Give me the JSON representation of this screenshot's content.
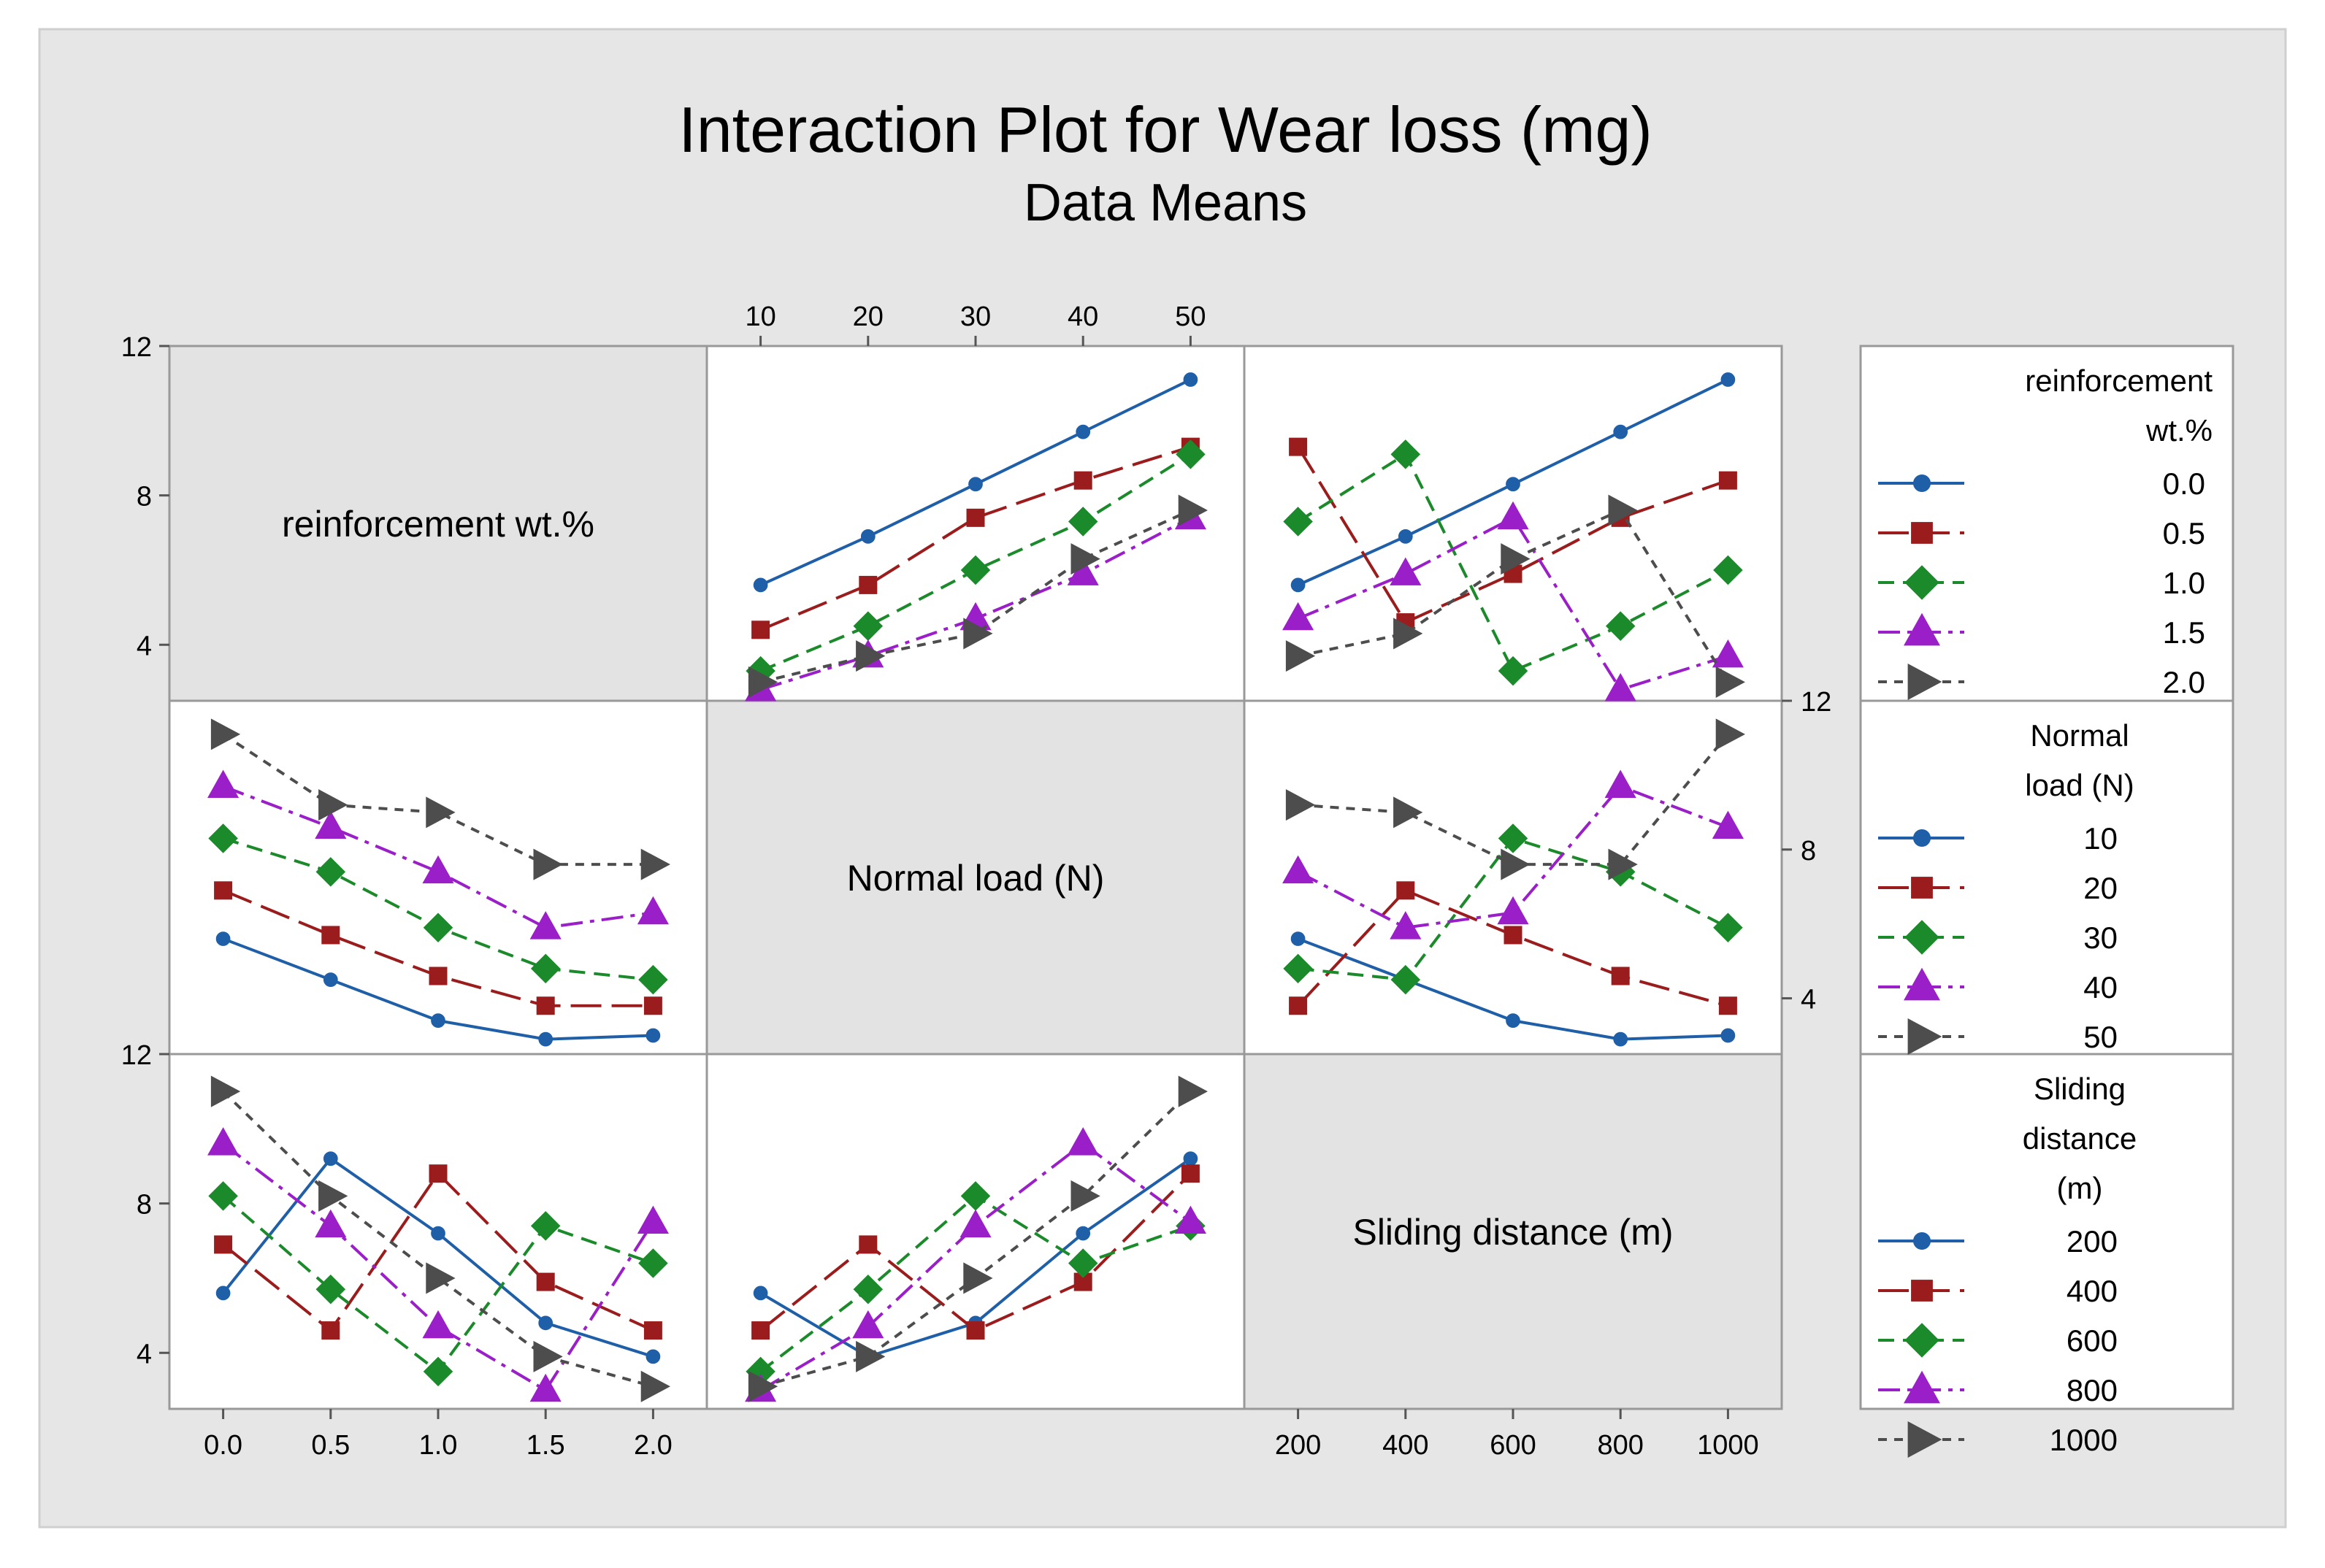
{
  "title": "Interaction Plot for Wear loss (mg)",
  "subtitle": "Data Means",
  "colors": {
    "background": "#e6e6e6",
    "panel": "#ffffff",
    "label_panel": "#e3e3e3",
    "frame": "#999999",
    "series": [
      "#1f5fa8",
      "#9b1c1c",
      "#1b8a2a",
      "#9a1fc8",
      "#4d4d4d"
    ]
  },
  "marker_names": [
    "circle",
    "square",
    "diamond",
    "triangle-up",
    "triangle-right"
  ],
  "dash_patterns": [
    "solid",
    "long-dash",
    "dash",
    "dash-dot",
    "short-dash"
  ],
  "chart_data": {
    "type": "line",
    "factors": [
      {
        "name": "reinforcement wt.%",
        "levels": [
          "0.0",
          "0.5",
          "1.0",
          "1.5",
          "2.0"
        ],
        "legend_title": [
          "reinforcement",
          "wt.%"
        ]
      },
      {
        "name": "Normal load (N)",
        "levels": [
          "10",
          "20",
          "30",
          "40",
          "50"
        ],
        "legend_title": [
          "Normal",
          "load (N)"
        ]
      },
      {
        "name": "Sliding distance (m)",
        "levels": [
          "200",
          "400",
          "600",
          "800",
          "1000"
        ],
        "legend_title": [
          "Sliding",
          "distance",
          "(m)"
        ]
      }
    ],
    "ylim": [
      2.5,
      12
    ],
    "yticks": [
      4,
      8,
      12
    ],
    "ytick_labels": [
      "4",
      "8",
      "12"
    ],
    "panels": [
      {
        "row": 0,
        "col": 1,
        "x_factor": "Normal load (N)",
        "trace_factor": "reinforcement wt.%",
        "series": [
          {
            "name": "0.0",
            "values": [
              5.6,
              6.9,
              8.3,
              9.7,
              11.1
            ]
          },
          {
            "name": "0.5",
            "values": [
              4.4,
              5.6,
              7.4,
              8.4,
              9.3
            ]
          },
          {
            "name": "1.0",
            "values": [
              3.3,
              4.5,
              6.0,
              7.3,
              9.1
            ]
          },
          {
            "name": "1.5",
            "values": [
              2.8,
              3.7,
              4.7,
              5.9,
              7.4
            ]
          },
          {
            "name": "2.0",
            "values": [
              3.0,
              3.7,
              4.3,
              6.3,
              7.6
            ]
          }
        ]
      },
      {
        "row": 0,
        "col": 2,
        "x_factor": "Sliding distance (m)",
        "trace_factor": "reinforcement wt.%",
        "series": [
          {
            "name": "0.0",
            "values": [
              5.6,
              6.9,
              8.3,
              9.7,
              11.1
            ]
          },
          {
            "name": "0.5",
            "values": [
              9.3,
              4.6,
              5.9,
              7.4,
              8.4
            ]
          },
          {
            "name": "1.0",
            "values": [
              7.3,
              9.1,
              3.3,
              4.5,
              6.0
            ]
          },
          {
            "name": "1.5",
            "values": [
              4.7,
              5.9,
              7.4,
              2.8,
              3.7
            ]
          },
          {
            "name": "2.0",
            "values": [
              3.7,
              4.3,
              6.3,
              7.6,
              3.0
            ]
          }
        ]
      },
      {
        "row": 1,
        "col": 0,
        "x_factor": "reinforcement wt.%",
        "trace_factor": "Normal load (N)",
        "series": [
          {
            "name": "10",
            "values": [
              5.6,
              4.5,
              3.4,
              2.9,
              3.0
            ]
          },
          {
            "name": "20",
            "values": [
              6.9,
              5.7,
              4.6,
              3.8,
              3.8
            ]
          },
          {
            "name": "30",
            "values": [
              8.3,
              7.4,
              5.9,
              4.8,
              4.5
            ]
          },
          {
            "name": "40",
            "values": [
              9.7,
              8.6,
              7.4,
              5.9,
              6.3
            ]
          },
          {
            "name": "50",
            "values": [
              11.1,
              9.2,
              9.0,
              7.6,
              7.6
            ]
          }
        ]
      },
      {
        "row": 1,
        "col": 2,
        "x_factor": "Sliding distance (m)",
        "trace_factor": "Normal load (N)",
        "series": [
          {
            "name": "10",
            "values": [
              5.6,
              4.5,
              3.4,
              2.9,
              3.0
            ]
          },
          {
            "name": "20",
            "values": [
              3.8,
              6.9,
              5.7,
              4.6,
              3.8
            ]
          },
          {
            "name": "30",
            "values": [
              4.8,
              4.5,
              8.3,
              7.4,
              5.9
            ]
          },
          {
            "name": "40",
            "values": [
              7.4,
              5.9,
              6.3,
              9.7,
              8.6
            ]
          },
          {
            "name": "50",
            "values": [
              9.2,
              9.0,
              7.6,
              7.6,
              11.1
            ]
          }
        ]
      },
      {
        "row": 2,
        "col": 0,
        "x_factor": "reinforcement wt.%",
        "trace_factor": "Sliding distance (m)",
        "series": [
          {
            "name": "200",
            "values": [
              5.6,
              9.2,
              7.2,
              4.8,
              3.9
            ]
          },
          {
            "name": "400",
            "values": [
              6.9,
              4.6,
              8.8,
              5.9,
              4.6
            ]
          },
          {
            "name": "600",
            "values": [
              8.2,
              5.7,
              3.5,
              7.4,
              6.4
            ]
          },
          {
            "name": "800",
            "values": [
              9.6,
              7.4,
              4.7,
              3.0,
              7.5
            ]
          },
          {
            "name": "1000",
            "values": [
              11.0,
              8.2,
              6.0,
              3.9,
              3.1
            ]
          }
        ]
      },
      {
        "row": 2,
        "col": 1,
        "x_factor": "Normal load (N)",
        "trace_factor": "Sliding distance (m)",
        "series": [
          {
            "name": "200",
            "values": [
              5.6,
              3.9,
              4.8,
              7.2,
              9.2
            ]
          },
          {
            "name": "400",
            "values": [
              4.6,
              6.9,
              4.6,
              5.9,
              8.8
            ]
          },
          {
            "name": "600",
            "values": [
              3.5,
              5.7,
              8.2,
              6.4,
              7.4
            ]
          },
          {
            "name": "800",
            "values": [
              3.0,
              4.7,
              7.4,
              9.6,
              7.5
            ]
          },
          {
            "name": "1000",
            "values": [
              3.1,
              3.9,
              6.0,
              8.2,
              11.0
            ]
          }
        ]
      }
    ]
  }
}
